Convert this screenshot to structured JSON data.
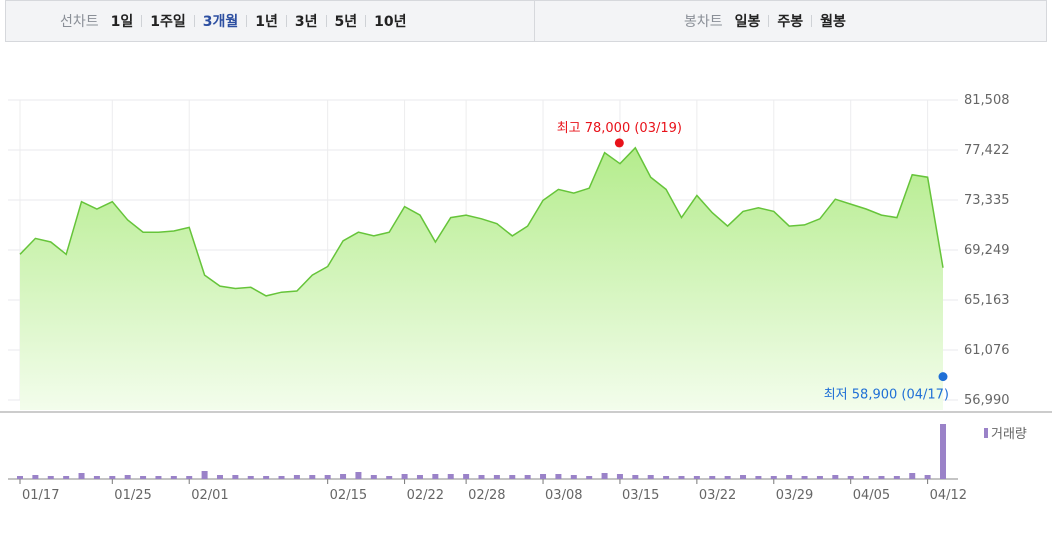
{
  "toolbar": {
    "line_label": "선차트",
    "periods": [
      "1일",
      "1주일",
      "3개월",
      "1년",
      "3년",
      "5년",
      "10년"
    ],
    "active_period": "3개월",
    "candle_label": "봉차트",
    "candles": [
      "일봉",
      "주봉",
      "월봉"
    ]
  },
  "colors": {
    "line": "#66c43a",
    "fill_top": "#b4ec8c",
    "fill_bottom": "#f3fdec",
    "volume": "#9a82c8",
    "high": "#e8121a",
    "low": "#1f6fd6",
    "active": "#2d4fa1"
  },
  "chart_data": {
    "type": "area",
    "y_ticks": [
      "81,508",
      "77,422",
      "73,335",
      "69,249",
      "65,163",
      "61,076",
      "56,990"
    ],
    "ylim": [
      56990,
      81508
    ],
    "x_ticks": [
      "01/17",
      "01/25",
      "02/01",
      "02/15",
      "02/22",
      "02/28",
      "03/08",
      "03/15",
      "03/22",
      "03/29",
      "04/05",
      "04/12"
    ],
    "x_tick_index": [
      0,
      6,
      11,
      20,
      25,
      29,
      34,
      39,
      44,
      49,
      54,
      59
    ],
    "grid": true,
    "values": [
      68900,
      70200,
      69900,
      68900,
      73200,
      72600,
      73200,
      71700,
      70700,
      70700,
      70800,
      71100,
      67200,
      66300,
      66100,
      66200,
      65500,
      65800,
      65900,
      67200,
      67900,
      70000,
      70700,
      70400,
      70700,
      72800,
      72100,
      69900,
      71900,
      72100,
      71800,
      71400,
      70400,
      71200,
      73300,
      74200,
      73900,
      74300,
      77200,
      76300,
      77600,
      75200,
      74200,
      71900,
      73700,
      72300,
      71200,
      72400,
      72700,
      72400,
      71200,
      71300,
      71800,
      73400,
      73000,
      72600,
      72100,
      71900,
      75400,
      75200,
      67800
    ],
    "volume": [
      3,
      4,
      3,
      3,
      6,
      3,
      3,
      4,
      3,
      3,
      3,
      3,
      8,
      4,
      4,
      3,
      3,
      3,
      4,
      4,
      4,
      5,
      7,
      4,
      3,
      5,
      4,
      5,
      5,
      5,
      4,
      4,
      4,
      4,
      5,
      5,
      4,
      3,
      6,
      5,
      4,
      4,
      3,
      3,
      3,
      3,
      3,
      4,
      3,
      3,
      4,
      3,
      3,
      4,
      3,
      3,
      3,
      3,
      6,
      4,
      55
    ],
    "high": {
      "label": "최고 78,000 (03/19)",
      "value": 78000,
      "index": 40
    },
    "low": {
      "label": "최저 58,900 (04/17)",
      "value": 58900,
      "index": 60
    },
    "volume_legend": "거래량"
  }
}
